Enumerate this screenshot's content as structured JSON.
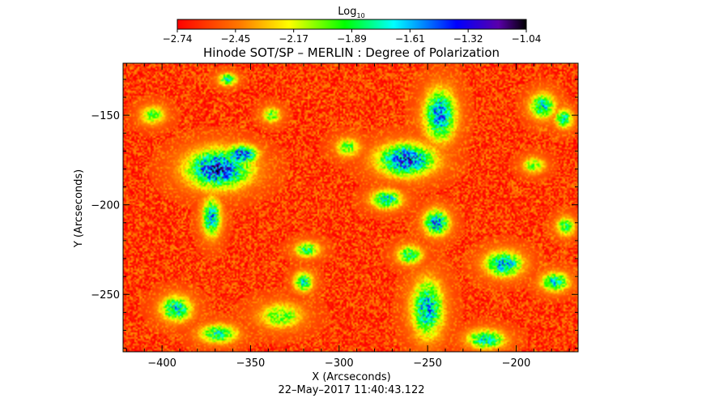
{
  "chart_data": {
    "type": "heatmap",
    "title": "Hinode SOT/SP – MERLIN : Degree of Polarization",
    "xlabel": "X (Arcseconds)",
    "ylabel": "Y (Arcseconds)",
    "timestamp": "22–May–2017 11:40:43.122",
    "xlim": [
      -422,
      -165
    ],
    "ylim": [
      -282,
      -121
    ],
    "x_ticks": [
      -400,
      -350,
      -300,
      -250,
      -200
    ],
    "x_tick_labels": [
      "−400",
      "−350",
      "−300",
      "−250",
      "−200"
    ],
    "y_ticks": [
      -150,
      -200,
      -250
    ],
    "y_tick_labels": [
      "−150",
      "−200",
      "−250"
    ],
    "colorbar": {
      "label": "Log",
      "label_subscript": "10",
      "range": [
        -2.74,
        -1.04
      ],
      "colormap": "rainbow reversed (red → yellow → green → cyan → blue → black)",
      "tick_labels": [
        "−2.74",
        "−2.45",
        "−2.17",
        "−1.89",
        "−1.61",
        "−1.32",
        "−1.04"
      ]
    },
    "grid": false,
    "background_level": -2.6,
    "network_patches": [
      {
        "x": -368,
        "y": -180,
        "rx": 20,
        "ry": 12,
        "peak": -1.2
      },
      {
        "x": -355,
        "y": -172,
        "rx": 10,
        "ry": 6,
        "peak": -1.3
      },
      {
        "x": -372,
        "y": -207,
        "rx": 6,
        "ry": 12,
        "peak": -1.5
      },
      {
        "x": -262,
        "y": -175,
        "rx": 18,
        "ry": 10,
        "peak": -1.25
      },
      {
        "x": -243,
        "y": -150,
        "rx": 10,
        "ry": 16,
        "peak": -1.4
      },
      {
        "x": -245,
        "y": -210,
        "rx": 8,
        "ry": 8,
        "peak": -1.4
      },
      {
        "x": -273,
        "y": -197,
        "rx": 10,
        "ry": 6,
        "peak": -1.6
      },
      {
        "x": -207,
        "y": -233,
        "rx": 12,
        "ry": 8,
        "peak": -1.5
      },
      {
        "x": -178,
        "y": -243,
        "rx": 9,
        "ry": 6,
        "peak": -1.6
      },
      {
        "x": -250,
        "y": -258,
        "rx": 10,
        "ry": 18,
        "peak": -1.5
      },
      {
        "x": -320,
        "y": -243,
        "rx": 6,
        "ry": 6,
        "peak": -1.6
      },
      {
        "x": -392,
        "y": -258,
        "rx": 10,
        "ry": 8,
        "peak": -1.6
      },
      {
        "x": -368,
        "y": -272,
        "rx": 12,
        "ry": 6,
        "peak": -1.7
      },
      {
        "x": -333,
        "y": -262,
        "rx": 14,
        "ry": 8,
        "peak": -1.9
      },
      {
        "x": -217,
        "y": -275,
        "rx": 12,
        "ry": 6,
        "peak": -1.6
      },
      {
        "x": -185,
        "y": -145,
        "rx": 8,
        "ry": 8,
        "peak": -1.6
      },
      {
        "x": -173,
        "y": -152,
        "rx": 6,
        "ry": 6,
        "peak": -1.7
      },
      {
        "x": -363,
        "y": -130,
        "rx": 6,
        "ry": 4,
        "peak": -1.7
      },
      {
        "x": -318,
        "y": -225,
        "rx": 8,
        "ry": 5,
        "peak": -1.8
      },
      {
        "x": -260,
        "y": -228,
        "rx": 8,
        "ry": 6,
        "peak": -1.7
      },
      {
        "x": -295,
        "y": -168,
        "rx": 8,
        "ry": 6,
        "peak": -1.9
      },
      {
        "x": -405,
        "y": -150,
        "rx": 8,
        "ry": 6,
        "peak": -1.9
      },
      {
        "x": -190,
        "y": -178,
        "rx": 7,
        "ry": 5,
        "peak": -1.9
      },
      {
        "x": -338,
        "y": -150,
        "rx": 6,
        "ry": 5,
        "peak": -1.9
      },
      {
        "x": -172,
        "y": -212,
        "rx": 6,
        "ry": 6,
        "peak": -1.8
      }
    ]
  }
}
